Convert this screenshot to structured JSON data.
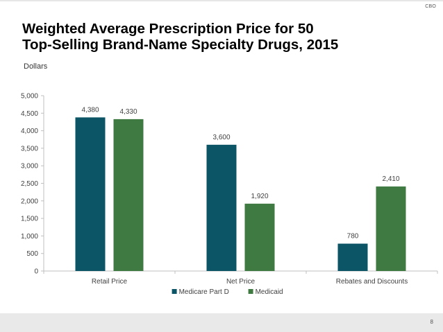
{
  "header": {
    "org": "CBO"
  },
  "footer": {
    "page_number": "8"
  },
  "chart_data": {
    "type": "bar",
    "title_lines": [
      "Weighted Average Prescription Price for 50",
      "Top-Selling Brand-Name Specialty Drugs, 2015"
    ],
    "ylabel": "Dollars",
    "xlabel": "",
    "categories": [
      "Retail Price",
      "Net Price",
      "Rebates and Discounts"
    ],
    "series": [
      {
        "name": "Medicare Part D",
        "color": "#0b5567",
        "values": [
          4380,
          3600,
          780
        ],
        "labels": [
          "4,380",
          "3,600",
          "780"
        ]
      },
      {
        "name": "Medicaid",
        "color": "#3f7a43",
        "values": [
          4330,
          1920,
          2410
        ],
        "labels": [
          "4,330",
          "1,920",
          "2,410"
        ]
      }
    ],
    "ylim": [
      0,
      5000
    ],
    "yticks": [
      0,
      500,
      1000,
      1500,
      2000,
      2500,
      3000,
      3500,
      4000,
      4500,
      5000
    ],
    "ytick_labels": [
      "0",
      "500",
      "1,000",
      "1,500",
      "2,000",
      "2,500",
      "3,000",
      "3,500",
      "4,000",
      "4,500",
      "5,000"
    ],
    "grid": false,
    "legend_position": "bottom"
  }
}
